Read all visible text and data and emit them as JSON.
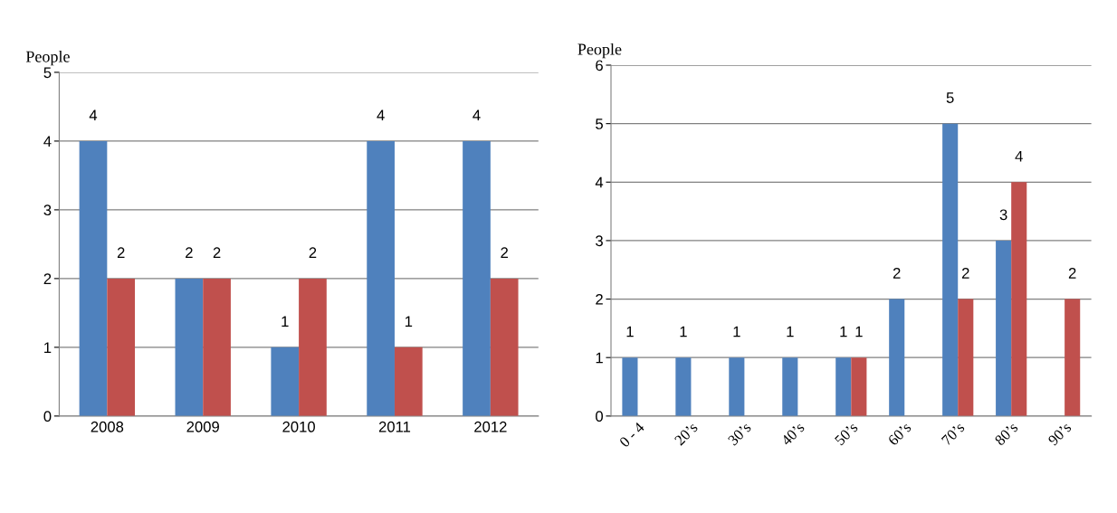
{
  "chart_data": [
    {
      "type": "bar",
      "ylabel": "People",
      "categories": [
        "2008",
        "2009",
        "2010",
        "2011",
        "2012"
      ],
      "series": [
        {
          "color": "#4f81bd",
          "values": [
            4,
            2,
            1,
            4,
            4
          ]
        },
        {
          "color": "#c0504d",
          "values": [
            2,
            2,
            2,
            1,
            2
          ]
        }
      ],
      "ylim": [
        0,
        5
      ],
      "yticks": [
        0,
        1,
        2,
        3,
        4,
        5
      ],
      "grid": "y",
      "data_labels": true
    },
    {
      "type": "bar",
      "ylabel": "People",
      "categories": [
        "0 - 4",
        "20’s",
        "30’s",
        "40’s",
        "50’s",
        "60’s",
        "70’s",
        "80’s",
        "90’s"
      ],
      "series": [
        {
          "color": "#4f81bd",
          "values": [
            1,
            1,
            1,
            1,
            1,
            2,
            5,
            3,
            null
          ]
        },
        {
          "color": "#c0504d",
          "values": [
            null,
            null,
            null,
            null,
            1,
            null,
            2,
            4,
            2
          ]
        }
      ],
      "ylim": [
        0,
        6
      ],
      "yticks": [
        0,
        1,
        2,
        3,
        4,
        5,
        6
      ],
      "grid": "y",
      "data_labels": true
    }
  ]
}
